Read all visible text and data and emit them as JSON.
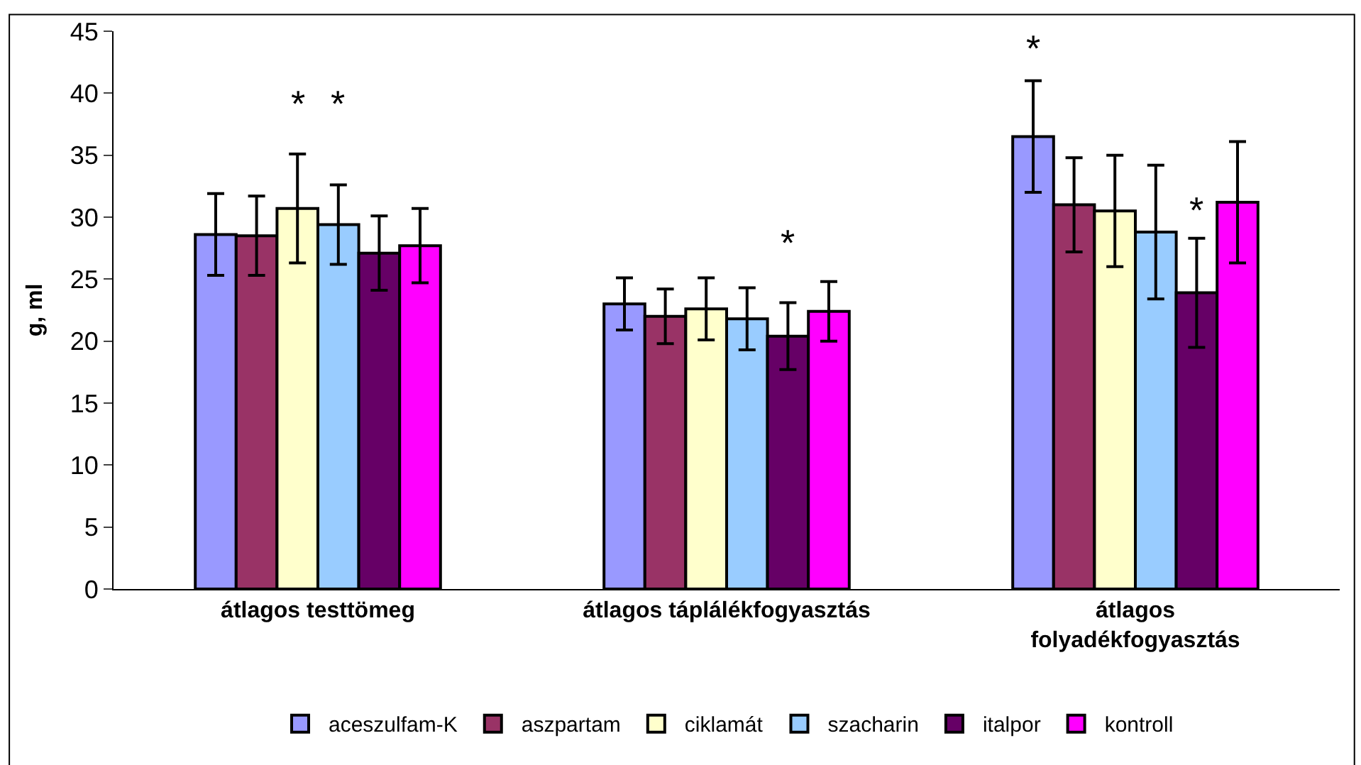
{
  "chart_data": {
    "type": "bar",
    "ylabel": "g, ml",
    "categories": [
      "átlagos testtömeg",
      "átlagos táplálékfogyasztás",
      "átlagos\nfolyadékfogyasztás"
    ],
    "series": [
      {
        "name": "aceszulfam-K",
        "color": "#9999ff",
        "values": [
          28.6,
          23.0,
          36.5
        ],
        "errors": [
          3.3,
          2.1,
          4.5
        ]
      },
      {
        "name": "aszpartam",
        "color": "#993366",
        "values": [
          28.5,
          22.0,
          31.0
        ],
        "errors": [
          3.2,
          2.2,
          3.8
        ]
      },
      {
        "name": "ciklamát",
        "color": "#ffffcc",
        "values": [
          30.7,
          22.6,
          30.5
        ],
        "errors": [
          4.4,
          2.5,
          4.5
        ]
      },
      {
        "name": "szacharin",
        "color": "#99ccff",
        "values": [
          29.4,
          21.8,
          28.8
        ],
        "errors": [
          3.2,
          2.5,
          5.4
        ]
      },
      {
        "name": "italpor",
        "color": "#660066",
        "values": [
          27.1,
          20.4,
          23.9
        ],
        "errors": [
          3.0,
          2.7,
          4.4
        ]
      },
      {
        "name": "kontroll",
        "color": "#ff00ff",
        "values": [
          27.7,
          22.4,
          31.2
        ],
        "errors": [
          3.0,
          2.4,
          4.9
        ]
      }
    ],
    "ylim": [
      0,
      45
    ],
    "yticks": [
      0,
      5,
      10,
      15,
      20,
      25,
      30,
      35,
      40,
      45
    ],
    "grid": false,
    "legend": "bottom",
    "annotations": [
      "*",
      "*",
      "*",
      "*",
      "*"
    ]
  }
}
